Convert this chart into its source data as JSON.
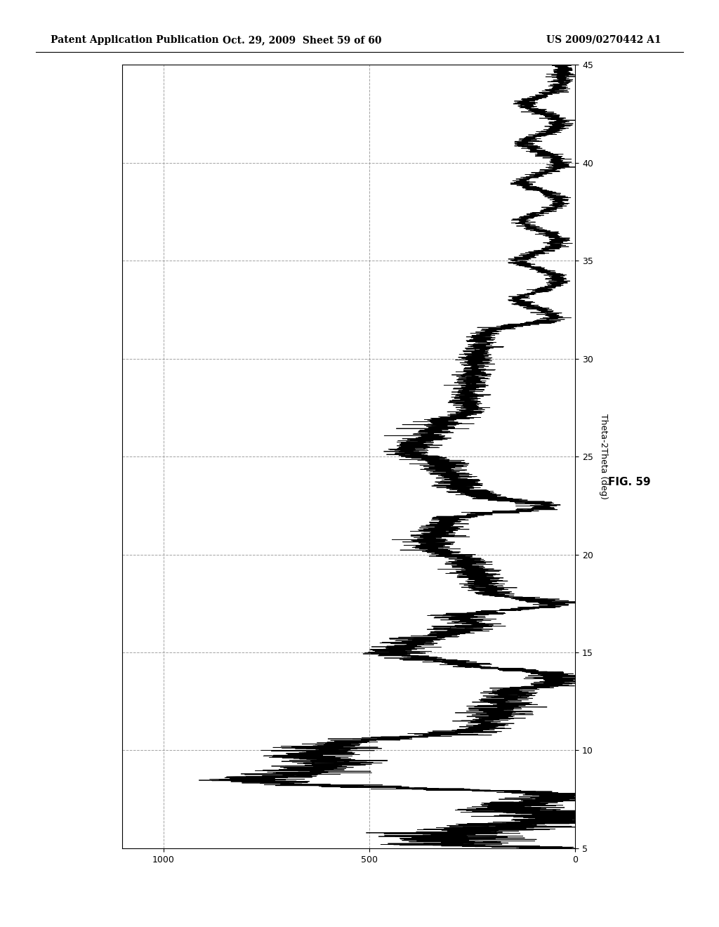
{
  "header_left": "Patent Application Publication",
  "header_mid": "Oct. 29, 2009  Sheet 59 of 60",
  "header_right": "US 2009/0270442 A1",
  "fig_label": "FIG. 59",
  "xlabel": "Theta-2Theta (deg)",
  "ytick_labels": [
    "0",
    "500",
    "1000"
  ],
  "ytick_values": [
    0,
    500,
    1000
  ],
  "xtick_labels": [
    "5",
    "10",
    "15",
    "20",
    "25",
    "30",
    "35",
    "40",
    "45"
  ],
  "xtick_values": [
    5,
    10,
    15,
    20,
    25,
    30,
    35,
    40,
    45
  ],
  "theta_min": 5,
  "theta_max": 45,
  "intensity_min": 0,
  "intensity_max": 1100,
  "background_color": "#ffffff",
  "line_color": "#000000",
  "grid_color": "#999999",
  "grid_style": "--",
  "header_fontsize": 10,
  "axis_fontsize": 9,
  "tick_fontsize": 9,
  "figlabel_fontsize": 11
}
